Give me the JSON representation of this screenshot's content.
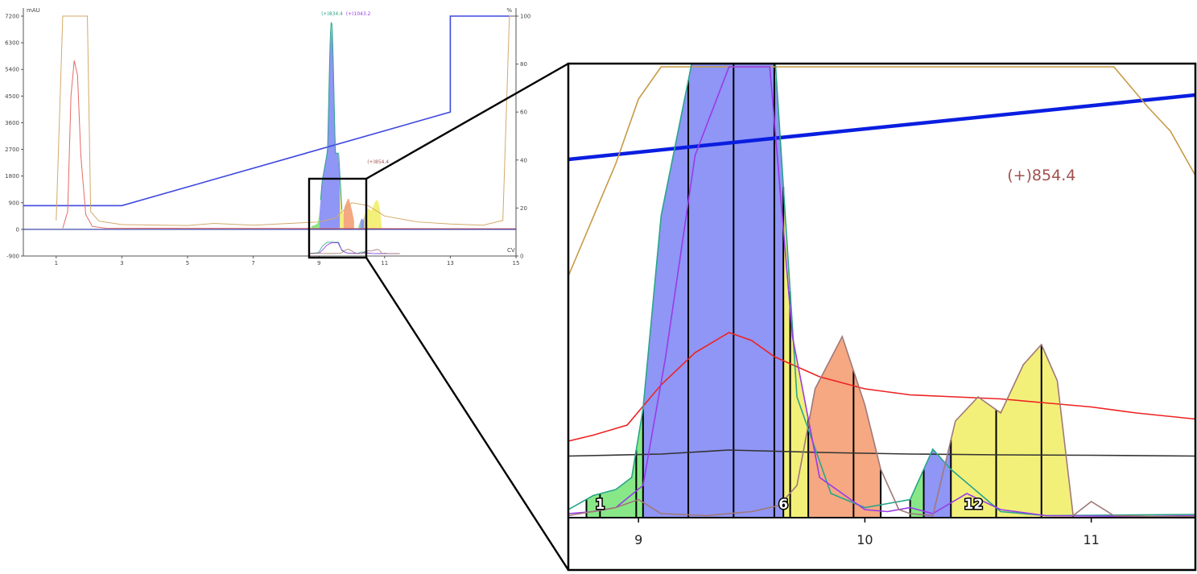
{
  "chart_data": [
    {
      "type": "line",
      "view": "overview",
      "title": "",
      "xlabel": "CV",
      "ylabel": "mAU",
      "y2label": "%",
      "xlim": [
        0,
        15
      ],
      "ylim": [
        -900,
        7200
      ],
      "y2lim": [
        0,
        100
      ],
      "x_ticks": [
        1,
        3,
        5,
        7,
        9,
        11,
        13,
        15
      ],
      "y_ticks": [
        7200,
        6300,
        5400,
        4500,
        3600,
        2700,
        1800,
        900,
        0,
        -900
      ],
      "y2_ticks": [
        100,
        80,
        60,
        40,
        20,
        0
      ],
      "annotations": [
        {
          "text": "(+)834.4",
          "x": 9.4,
          "color": "#2aa58a"
        },
        {
          "text": "(+)1043.2",
          "x": 10.2,
          "color": "#9a3ae8"
        },
        {
          "text": "(+)854.4",
          "x": 10.8,
          "color": "#a0504e"
        }
      ],
      "series": [
        {
          "role": "gradient",
          "axis": "right",
          "color": "#3f48e0",
          "points": [
            [
              0,
              21
            ],
            [
              3,
              21
            ],
            [
              13,
              60
            ],
            [
              13,
              100
            ],
            [
              15,
              100
            ]
          ]
        },
        {
          "role": "uv-trace",
          "axis": "left",
          "color": "#e56a66",
          "points": [
            [
              1.2,
              40
            ],
            [
              1.35,
              600
            ],
            [
              1.45,
              4500
            ],
            [
              1.55,
              5700
            ],
            [
              1.65,
              5200
            ],
            [
              1.75,
              2500
            ],
            [
              1.9,
              500
            ],
            [
              2.1,
              100
            ],
            [
              2.5,
              40
            ],
            [
              15,
              20
            ]
          ]
        },
        {
          "role": "uv-trace",
          "axis": "left",
          "color": "#d4a96a",
          "points": [
            [
              1.0,
              300
            ],
            [
              1.2,
              7200
            ],
            [
              1.95,
              7200
            ],
            [
              2.05,
              600
            ],
            [
              2.3,
              280
            ],
            [
              3,
              160
            ],
            [
              5,
              130
            ],
            [
              5.8,
              200
            ],
            [
              7,
              140
            ],
            [
              9,
              250
            ],
            [
              9.5,
              380
            ],
            [
              10,
              900
            ],
            [
              10.5,
              800
            ],
            [
              11,
              450
            ],
            [
              12,
              250
            ],
            [
              13,
              180
            ],
            [
              14,
              140
            ],
            [
              14.6,
              300
            ],
            [
              14.8,
              7200
            ],
            [
              15,
              7200
            ]
          ]
        },
        {
          "role": "uv-trace",
          "axis": "left",
          "color": "#1e2a9b",
          "points": [
            [
              0,
              0
            ],
            [
              15,
              0
            ]
          ]
        }
      ]
    },
    {
      "type": "area",
      "view": "zoom",
      "title": "",
      "xlabel": "",
      "ylabel": "",
      "xlim": [
        8.69,
        11.46
      ],
      "x_ticks": [
        9,
        10,
        11
      ],
      "annotation": {
        "text": "(+)854.4",
        "x": 10.78,
        "color": "#a0504e"
      },
      "fraction_labels": [
        {
          "text": "1",
          "x": 8.83
        },
        {
          "text": "6",
          "x": 9.64
        },
        {
          "text": "12",
          "x": 10.48
        }
      ],
      "fractions": [
        {
          "from": 8.77,
          "to": 9.02,
          "color": "#88e888"
        },
        {
          "from": 9.02,
          "to": 9.64,
          "color": "#8f96f5"
        },
        {
          "from": 9.64,
          "to": 9.75,
          "color": "#f3f07a"
        },
        {
          "from": 9.75,
          "to": 10.07,
          "color": "#f5a881"
        },
        {
          "from": 10.2,
          "to": 10.26,
          "color": "#88e888"
        },
        {
          "from": 10.26,
          "to": 10.38,
          "color": "#8f96f5"
        },
        {
          "from": 10.38,
          "to": 10.92,
          "color": "#f3f07a"
        }
      ],
      "fraction_cuts": [
        8.77,
        8.83,
        8.99,
        9.02,
        9.22,
        9.42,
        9.6,
        9.64,
        9.67,
        9.75,
        9.95,
        10.07,
        10.2,
        10.26,
        10.38,
        10.58,
        10.78,
        10.92
      ],
      "series": [
        {
          "role": "red-trace",
          "color": "#ee2222",
          "points": [
            [
              8.69,
              190
            ],
            [
              8.8,
              205
            ],
            [
              8.95,
              230
            ],
            [
              9.1,
              330
            ],
            [
              9.25,
              410
            ],
            [
              9.4,
              460
            ],
            [
              9.5,
              440
            ],
            [
              9.6,
              400
            ],
            [
              9.8,
              350
            ],
            [
              10.0,
              320
            ],
            [
              10.2,
              305
            ],
            [
              10.4,
              300
            ],
            [
              10.6,
              295
            ],
            [
              10.8,
              285
            ],
            [
              11.0,
              275
            ],
            [
              11.2,
              260
            ],
            [
              11.46,
              245
            ]
          ]
        },
        {
          "role": "black-trace",
          "color": "#333333",
          "points": [
            [
              8.69,
              153
            ],
            [
              9.1,
              158
            ],
            [
              9.4,
              168
            ],
            [
              9.8,
              162
            ],
            [
              10.2,
              158
            ],
            [
              10.6,
              156
            ],
            [
              11.0,
              155
            ],
            [
              11.46,
              153
            ]
          ]
        },
        {
          "role": "gradient",
          "color": "#0a1ee0",
          "points": [
            [
              8.69,
              890
            ],
            [
              11.46,
              1050
            ]
          ]
        },
        {
          "role": "tan-trace",
          "color": "#c79a44",
          "points": [
            [
              8.69,
              600
            ],
            [
              8.9,
              880
            ],
            [
              9.0,
              1040
            ],
            [
              9.1,
              1120
            ],
            [
              11.1,
              1120
            ],
            [
              11.25,
              1020
            ],
            [
              11.35,
              960
            ],
            [
              11.46,
              850
            ]
          ]
        },
        {
          "role": "teal-trace",
          "color": "#2aa58a",
          "points": [
            [
              8.69,
              20
            ],
            [
              8.8,
              55
            ],
            [
              8.9,
              70
            ],
            [
              8.97,
              100
            ],
            [
              9.02,
              270
            ],
            [
              9.1,
              750
            ],
            [
              9.25,
              1170
            ],
            [
              9.6,
              1170
            ],
            [
              9.7,
              300
            ],
            [
              9.85,
              60
            ],
            [
              10.0,
              25
            ],
            [
              10.2,
              45
            ],
            [
              10.3,
              170
            ],
            [
              10.38,
              120
            ],
            [
              10.6,
              15
            ],
            [
              10.8,
              5
            ],
            [
              11.46,
              8
            ]
          ]
        },
        {
          "role": "purple-trace",
          "color": "#9a3ae8",
          "points": [
            [
              8.69,
              10
            ],
            [
              8.8,
              15
            ],
            [
              8.9,
              25
            ],
            [
              9.02,
              80
            ],
            [
              9.12,
              400
            ],
            [
              9.25,
              900
            ],
            [
              9.4,
              1120
            ],
            [
              9.58,
              1120
            ],
            [
              9.68,
              450
            ],
            [
              9.8,
              100
            ],
            [
              10.0,
              20
            ],
            [
              10.1,
              15
            ],
            [
              10.2,
              25
            ],
            [
              10.3,
              10
            ],
            [
              10.45,
              60
            ],
            [
              10.6,
              20
            ],
            [
              10.8,
              5
            ],
            [
              11.2,
              3
            ],
            [
              11.46,
              5
            ]
          ]
        },
        {
          "role": "mauve-trace",
          "color": "#a07878",
          "points": [
            [
              8.69,
              5
            ],
            [
              8.9,
              25
            ],
            [
              9.0,
              45
            ],
            [
              9.1,
              10
            ],
            [
              9.3,
              5
            ],
            [
              9.5,
              15
            ],
            [
              9.62,
              30
            ],
            [
              9.7,
              80
            ],
            [
              9.78,
              320
            ],
            [
              9.9,
              450
            ],
            [
              10.0,
              280
            ],
            [
              10.07,
              120
            ],
            [
              10.15,
              20
            ],
            [
              10.2,
              10
            ],
            [
              10.3,
              5
            ],
            [
              10.4,
              240
            ],
            [
              10.5,
              300
            ],
            [
              10.6,
              260
            ],
            [
              10.7,
              380
            ],
            [
              10.78,
              430
            ],
            [
              10.85,
              340
            ],
            [
              10.92,
              5
            ],
            [
              11.0,
              40
            ],
            [
              11.1,
              5
            ],
            [
              11.3,
              3
            ],
            [
              11.46,
              3
            ]
          ]
        }
      ]
    }
  ]
}
